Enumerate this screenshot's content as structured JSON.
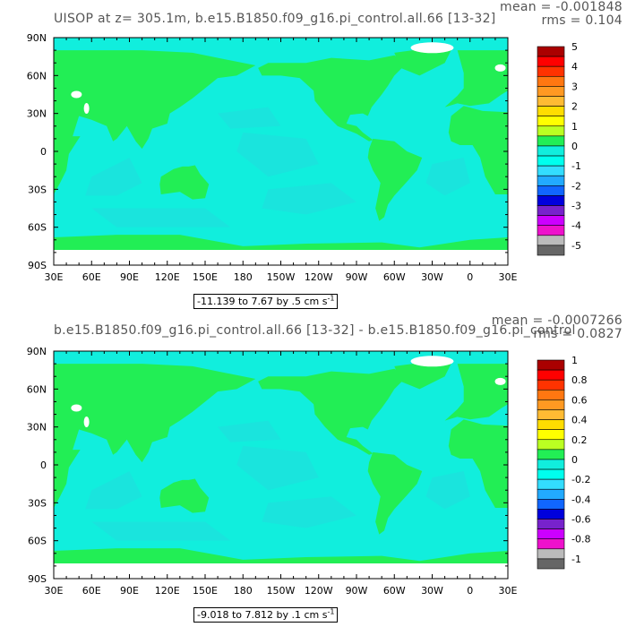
{
  "colors": {
    "land": "#22ee55",
    "ocean": "#11eedd",
    "ocean_deep": "#22dddd",
    "noData": "#ffffff"
  },
  "chart_data": [
    {
      "type": "heatmap",
      "title": "UISOP at z= 305.1m, b.e15.B1850.f09_g16.pi_control.all.66 [13-32]",
      "mean_label": "mean = -0.001848",
      "rms_label": "rms = 0.104",
      "x_ticks": [
        "30E",
        "60E",
        "90E",
        "120E",
        "150E",
        "180",
        "150W",
        "120W",
        "90W",
        "60W",
        "30W",
        "0",
        "30E"
      ],
      "y_ticks": [
        "90N",
        "60N",
        "30N",
        "0",
        "30S",
        "60S",
        "90S"
      ],
      "xlim": [
        30,
        390
      ],
      "ylim": [
        -90,
        90
      ],
      "range_label": "-11.139 to 7.67 by .5 cm s",
      "range_exp": "-1",
      "colorbar": {
        "labels": [
          "5",
          "4",
          "3",
          "2",
          "1",
          "0",
          "-1",
          "-2",
          "-3",
          "-4",
          "-5"
        ],
        "colors": [
          "#aa0000",
          "#ff0000",
          "#ff3300",
          "#ff7711",
          "#ff9922",
          "#ffbb33",
          "#ffdd00",
          "#ffff00",
          "#bbff22",
          "#22ee55",
          "#11eedd",
          "#00ffee",
          "#33ddff",
          "#22aaff",
          "#1166ff",
          "#0000dd",
          "#7722cc",
          "#cc00ff",
          "#ee11cc",
          "#bbbbbb",
          "#666666"
        ]
      }
    },
    {
      "type": "heatmap",
      "title": "b.e15.B1850.f09_g16.pi_control.all.66 [13-32] - b.e15.B1850.f09_g16.pi_control",
      "mean_label": "mean = -0.0007266",
      "rms_label": "rms = 0.0827",
      "x_ticks": [
        "30E",
        "60E",
        "90E",
        "120E",
        "150E",
        "180",
        "150W",
        "120W",
        "90W",
        "60W",
        "30W",
        "0",
        "30E"
      ],
      "y_ticks": [
        "90N",
        "60N",
        "30N",
        "0",
        "30S",
        "60S",
        "90S"
      ],
      "xlim": [
        30,
        390
      ],
      "ylim": [
        -90,
        90
      ],
      "range_label": "-9.018 to 7.812 by .1 cm s",
      "range_exp": "-1",
      "colorbar": {
        "labels": [
          "1",
          "0.8",
          "0.6",
          "0.4",
          "0.2",
          "0",
          "-0.2",
          "-0.4",
          "-0.6",
          "-0.8",
          "-1"
        ],
        "colors": [
          "#aa0000",
          "#ff0000",
          "#ff3300",
          "#ff7711",
          "#ff9922",
          "#ffbb33",
          "#ffdd00",
          "#ffff00",
          "#bbff22",
          "#22ee55",
          "#11eedd",
          "#00ffee",
          "#33ddff",
          "#22aaff",
          "#1166ff",
          "#0000dd",
          "#7722cc",
          "#cc00ff",
          "#ee11cc",
          "#bbbbbb",
          "#666666"
        ]
      }
    }
  ]
}
